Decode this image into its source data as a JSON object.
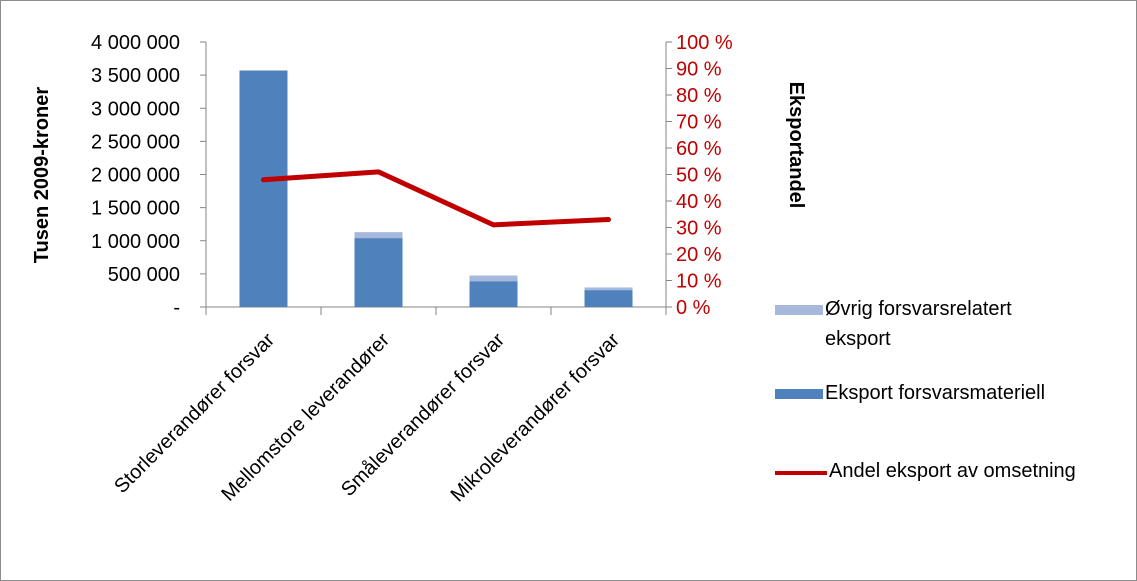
{
  "chart_data": {
    "type": "bar",
    "stacked": true,
    "categories": [
      "Storleverandører forsvar",
      "Mellomstore leverandører",
      "Småleverandører forsvar",
      "Mikroleverandører forsvar"
    ],
    "series": [
      {
        "name": "Eksport forsvarsmateriell",
        "kind": "bar",
        "axis": "left",
        "color": "#4f81bd",
        "values": [
          3570000,
          1040000,
          390000,
          255000
        ]
      },
      {
        "name": "Øvrig forsvarsrelatert eksport",
        "kind": "bar",
        "axis": "left",
        "color": "#a6b9dd",
        "values": [
          0,
          90000,
          85000,
          40000
        ]
      },
      {
        "name": "Andel eksport av omsetning",
        "kind": "line",
        "axis": "right",
        "color": "#c00000",
        "values": [
          0.48,
          0.51,
          0.31,
          0.33
        ]
      }
    ],
    "ylabel": "Tusen 2009-kroner",
    "y2label": "Eksportandel",
    "ylim": [
      0,
      4000000
    ],
    "y2lim": [
      0,
      1
    ],
    "yticks": [
      "4 000 000",
      "3 500 000",
      "3 000 000",
      "2 500 000",
      "2 000 000",
      "1 500 000",
      "1 000 000",
      "500 000",
      "-"
    ],
    "y2ticks": [
      "100 %",
      "90 %",
      "80 %",
      "70 %",
      "60 %",
      "50 %",
      "40 %",
      "30 %",
      "20 %",
      "10 %",
      "0 %"
    ],
    "grid": false,
    "legend_position": "right"
  },
  "legend": {
    "items": [
      {
        "label_line1": "Øvrig forsvarsrelatert",
        "label_line2": "eksport",
        "color": "#a6b9dd"
      },
      {
        "label": "Eksport forsvarsmateriell",
        "color": "#4f81bd"
      },
      {
        "label": "Andel eksport av omsetning",
        "color": "#c00000"
      }
    ]
  }
}
